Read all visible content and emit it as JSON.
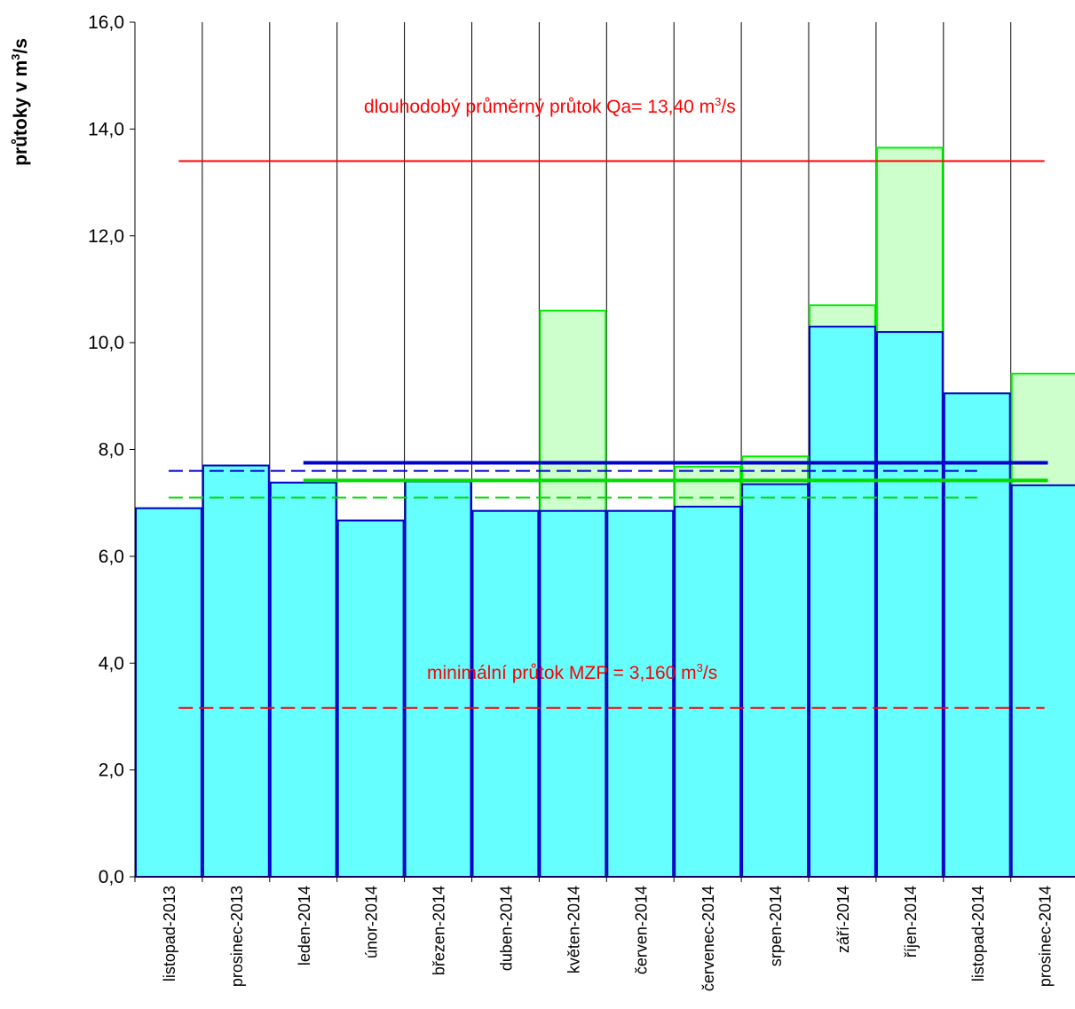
{
  "chart_data": {
    "type": "bar",
    "ylabel": {
      "pre": "průtoky v m",
      "sup": "3",
      "post": "/s"
    },
    "ylim": [
      0,
      16
    ],
    "yticks": [
      "0,0",
      "2,0",
      "4,0",
      "6,0",
      "8,0",
      "10,0",
      "12,0",
      "14,0",
      "16,0"
    ],
    "categories": [
      "listopad-2013",
      "prosinec-2013",
      "leden-2014",
      "únor-2014",
      "březen-2014",
      "duben-2014",
      "květen-2014",
      "červen-2014",
      "červenec-2014",
      "srpen-2014",
      "září-2014",
      "říjen-2014",
      "listopad-2014",
      "prosinec-2014"
    ],
    "series": [
      {
        "values": [
          6.9,
          7.7,
          7.38,
          6.67,
          7.4,
          6.85,
          10.6,
          6.85,
          7.68,
          7.87,
          10.7,
          13.65,
          9.05,
          9.42
        ],
        "fill": "#ccffcc",
        "stroke": "#00ee00"
      },
      {
        "values": [
          6.9,
          7.7,
          7.38,
          6.67,
          7.4,
          6.85,
          6.85,
          6.85,
          6.93,
          7.35,
          10.3,
          10.2,
          9.05,
          7.33
        ],
        "fill": "#66ffff",
        "stroke": "#0000cc"
      }
    ],
    "reference_lines": [
      {
        "value": 13.4,
        "from": 0.65,
        "to": 13.5,
        "color": "#ff0000",
        "style": "solid",
        "width": 2
      },
      {
        "value": 3.16,
        "from": 0.65,
        "to": 13.5,
        "color": "#ff0000",
        "style": "dashed",
        "width": 2
      },
      {
        "value": 7.75,
        "from": 2.5,
        "to": 13.55,
        "color": "#0000cc",
        "style": "solid",
        "width": 4
      },
      {
        "value": 7.42,
        "from": 2.5,
        "to": 13.55,
        "color": "#00dd00",
        "style": "solid",
        "width": 4
      },
      {
        "value": 7.6,
        "from": 0.5,
        "to": 12.5,
        "color": "#0000cc",
        "style": "dashed",
        "width": 2
      },
      {
        "value": 7.1,
        "from": 0.5,
        "to": 12.5,
        "color": "#00dd00",
        "style": "dashed",
        "width": 2
      }
    ],
    "annotations": {
      "qa": {
        "pre": "dlouhodobý průměrný  průtok Qa= 13,40 m",
        "sup": "3",
        "post": "/s"
      },
      "mzp": {
        "pre": "minimální průtok MZP = 3,160  m",
        "sup": "3",
        "post": "/s"
      }
    },
    "grid": "vertical",
    "colors": {
      "axis": "#000000",
      "grid": "#000000",
      "annotation": "#ff0000"
    }
  }
}
